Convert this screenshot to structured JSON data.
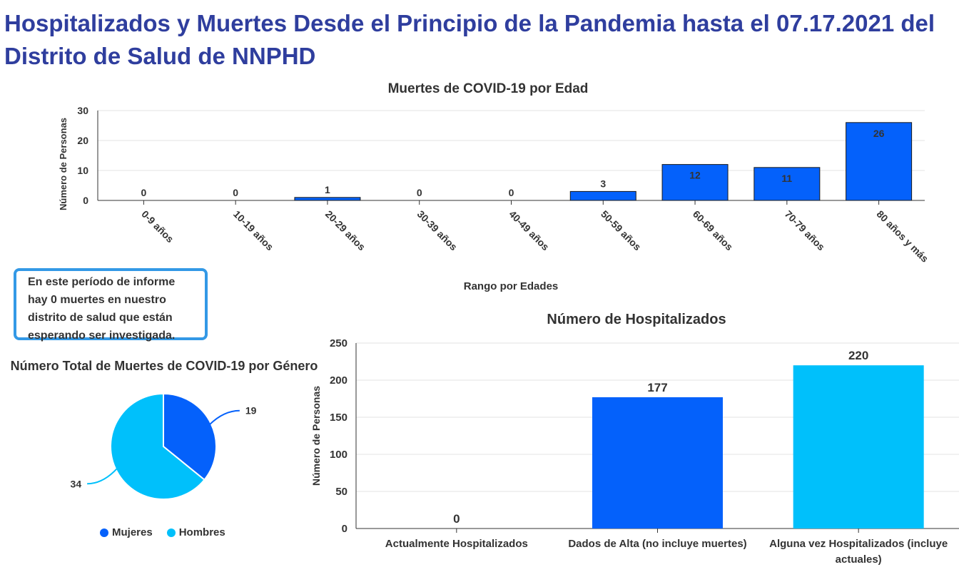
{
  "page": {
    "title": "Hospitalizados y Muertes Desde el Principio de la Pandemia hasta el 07.17.2021 del Distrito de Salud de NNPHD",
    "note": "En este período de informe hay 0 muertes en nuestro distrito de salud que están esperando ser investigada."
  },
  "colors": {
    "blue": "#0461fb",
    "cyan": "#00c0fb",
    "title": "#2f3e9e",
    "note_border": "#3399e6"
  },
  "chart_data": [
    {
      "id": "deaths_by_age",
      "type": "bar",
      "title": "Muertes de COVID-19 por Edad",
      "xlabel": "Rango por Edades",
      "ylabel": "Número de Personas",
      "categories": [
        "0-9 años",
        "10-19 años",
        "20-29 años",
        "30-39 años",
        "40-49 años",
        "50-59 años",
        "60-69 años",
        "70-79 años",
        "80 años y más"
      ],
      "values": [
        0,
        0,
        1,
        0,
        0,
        3,
        12,
        11,
        26
      ],
      "ylim": [
        0,
        30
      ],
      "yticks": [
        0,
        10,
        20,
        30
      ],
      "color": "#0461fb",
      "grid": true
    },
    {
      "id": "deaths_by_gender",
      "type": "pie",
      "title": "Número Total de Muertes de COVID-19 por Género",
      "labels": [
        "Mujeres",
        "Hombres"
      ],
      "values": [
        19,
        34
      ],
      "colors": [
        "#0461fb",
        "#00c0fb"
      ],
      "legend": "bottom"
    },
    {
      "id": "hospitalized",
      "type": "bar",
      "title": "Número de Hospitalizados",
      "ylabel": "Número de Personas",
      "categories": [
        "Actualmente Hospitalizados",
        "Dados de Alta (no incluye muertes)",
        "Alguna vez Hospitalizados (incluye actuales)"
      ],
      "values": [
        0,
        177,
        220
      ],
      "colors": [
        "#0461fb",
        "#0461fb",
        "#00c0fb"
      ],
      "ylim": [
        0,
        250
      ],
      "yticks": [
        0,
        50,
        100,
        150,
        200,
        250
      ],
      "grid": true
    }
  ]
}
